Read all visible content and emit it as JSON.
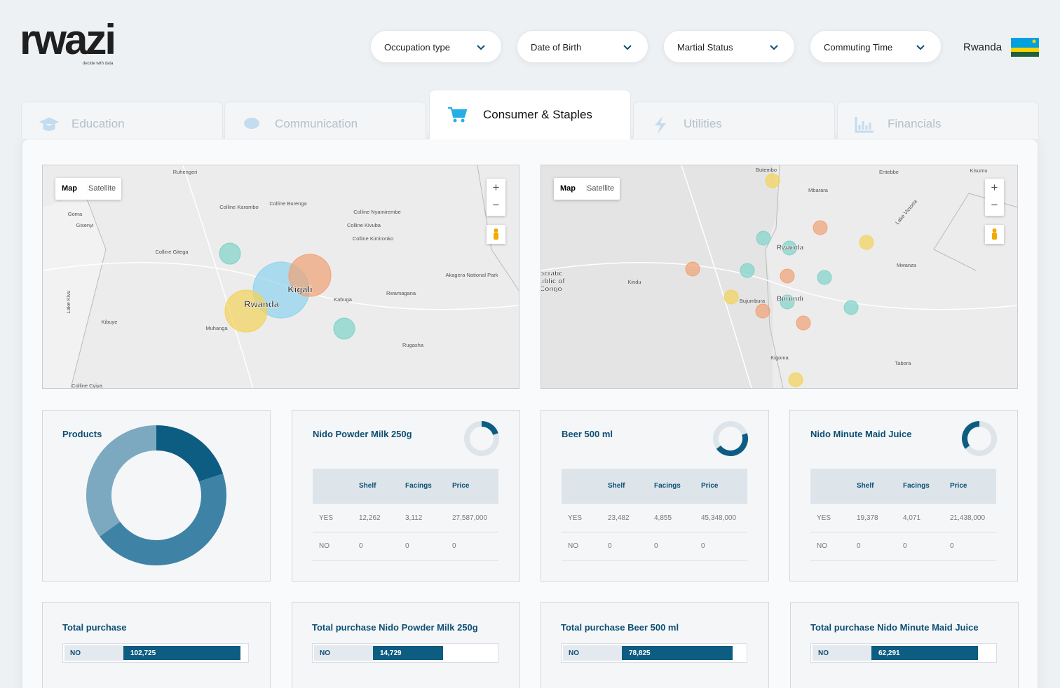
{
  "header": {
    "logo": "rwazi",
    "tagline": "decide with data",
    "filters": [
      "Occupation type",
      "Date of Birth",
      "Martial Status",
      "Commuting Time"
    ],
    "country": "Rwanda"
  },
  "tabs": [
    "Education",
    "Communication",
    "Consumer & Staples",
    "Utilities",
    "Financials"
  ],
  "active_tab": 2,
  "maps": [
    {
      "buttons": [
        "Map",
        "Satellite"
      ],
      "zoom": [
        "+",
        "−"
      ],
      "labels": [
        "Ruhengeri",
        "Goma",
        "Gisenyi",
        "Colline Karambo",
        "Colline Burenga",
        "Colline Nyamirembe",
        "Colline Kivuba",
        "Colline Kimironko",
        "Colline Gitega",
        "Kigali",
        "Rwanda",
        "Kabuga",
        "Rwamagana",
        "Akagera National Park",
        "Lake Kivu",
        "Kibuye",
        "Muhanga",
        "Rugasha",
        "Colline Cyiya"
      ]
    },
    {
      "buttons": [
        "Map",
        "Satellite"
      ],
      "zoom": [
        "+",
        "−"
      ],
      "labels": [
        "Butembo",
        "Entebbe",
        "Kisumu",
        "Mbarara",
        "Lake Victoria",
        "Rwanda",
        "Burundi",
        "Bujumbura",
        "Kindu",
        "ocratic",
        "ublic of",
        "Congo",
        "Mwanza",
        "Kigoma",
        "Tabora"
      ]
    }
  ],
  "chart_data": [
    {
      "type": "pie",
      "title": "Products",
      "values": [
        20,
        45,
        35
      ],
      "colors": [
        "#0d5c82",
        "#3e82a5",
        "#7ca9c0"
      ],
      "donut": true
    },
    {
      "type": "bar",
      "title": "Total purchase",
      "categories": [
        "NO"
      ],
      "values": [
        102725
      ],
      "value_labels": [
        "102,725"
      ],
      "xlim": [
        0,
        108000
      ],
      "color": "#0d5c82"
    },
    {
      "type": "bar",
      "title": "Total purchase Nido Powder Milk 250g",
      "categories": [
        "NO"
      ],
      "values": [
        14729
      ],
      "value_labels": [
        "14,729"
      ],
      "xlim": [
        0,
        26000
      ],
      "color": "#0d5c82"
    },
    {
      "type": "bar",
      "title": "Total purchase Beer 500 ml",
      "categories": [
        "NO"
      ],
      "values": [
        78825
      ],
      "value_labels": [
        "78,825"
      ],
      "xlim": [
        0,
        88000
      ],
      "color": "#0d5c82"
    },
    {
      "type": "bar",
      "title": "Total purchase Nido Minute Maid Juice",
      "categories": [
        "NO"
      ],
      "values": [
        62291
      ],
      "value_labels": [
        "62,291"
      ],
      "xlim": [
        0,
        72000
      ],
      "color": "#0d5c82"
    }
  ],
  "product_cards": [
    {
      "title": "Nido Powder Milk 250g",
      "table": {
        "header": [
          "Shelf",
          "Facings",
          "Price"
        ],
        "rows": [
          [
            "YES",
            "12,262",
            "3,112",
            "27,587,000"
          ],
          [
            "NO",
            "0",
            "0",
            "0"
          ]
        ]
      }
    },
    {
      "title": "Beer 500 ml",
      "table": {
        "header": [
          "Shelf",
          "Facings",
          "Price"
        ],
        "rows": [
          [
            "YES",
            "23,482",
            "4,855",
            "45,348,000"
          ],
          [
            "NO",
            "0",
            "0",
            "0"
          ]
        ]
      }
    },
    {
      "title": "Nido Minute Maid Juice",
      "table": {
        "header": [
          "Shelf",
          "Facings",
          "Price"
        ],
        "rows": [
          [
            "YES",
            "19,378",
            "4,071",
            "21,438,000"
          ],
          [
            "NO",
            "0",
            "0",
            "0"
          ]
        ]
      }
    }
  ]
}
